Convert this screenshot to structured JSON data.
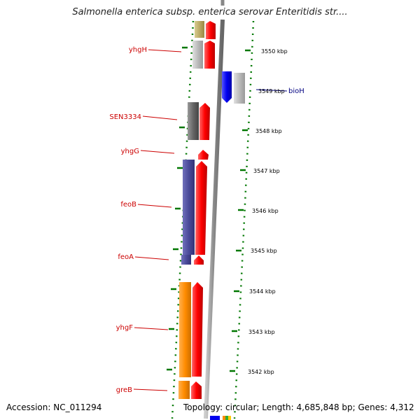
{
  "title": "Salmonella enterica subsp. enterica serovar Enteritidis str....",
  "footer": {
    "accession": "Accession: NC_011294",
    "topology": "Topology: circular; Length: 4,685,848 bp; Genes: 4,312"
  },
  "colors": {
    "label_left": "#cc0000",
    "label_right": "#000080",
    "tick_green": "#007700",
    "backbone": "#999999",
    "red_gene": "#ff0000",
    "blue_gene": "#0000ee",
    "purple_gene": "#4b4b9a",
    "orange_gene": "#ff8c00",
    "gray_gene": "#888888",
    "lightgray_gene": "#bbbbbb",
    "darkgray_gene": "#666666",
    "khaki_gene": "#bbaa66"
  },
  "kbp_labels": [
    "3550 kbp",
    "3549 kbp",
    "3548 kbp",
    "3547 kbp",
    "3546 kbp",
    "3545 kbp",
    "3544 kbp",
    "3543 kbp",
    "3542 kbp"
  ],
  "gene_labels_left": [
    "yhgH",
    "SEN3334",
    "yhgG",
    "feoB",
    "feoA",
    "yhgF",
    "greB"
  ],
  "gene_labels_right": [
    "bioH"
  ]
}
